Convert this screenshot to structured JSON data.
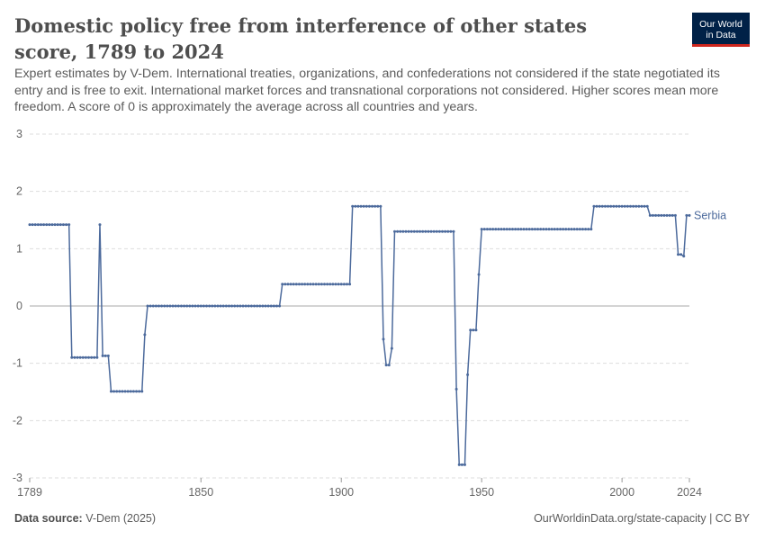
{
  "header": {
    "title": "Domestic policy free from interference of other states score, 1789 to 2024",
    "subtitle": "Expert estimates by V-Dem. International treaties, organizations, and confederations not considered if the state negotiated its entry and is free to exit. International market forces and transnational corporations not considered. Higher scores mean more freedom. A score of 0 is approximately the average across all countries and years.",
    "logo_line1": "Our World",
    "logo_line2": "in Data"
  },
  "footer": {
    "source_label": "Data source:",
    "source_value": "V-Dem (2025)",
    "url": "OurWorldinData.org/state-capacity | CC BY"
  },
  "colors": {
    "series": "#4c6a9c",
    "logo_bg": "#002147",
    "logo_accent": "#ce261e"
  },
  "chart_data": {
    "type": "line",
    "xlabel": "",
    "ylabel": "",
    "xlim": [
      1789,
      2024
    ],
    "ylim": [
      -3,
      3
    ],
    "x_ticks": [
      "1789",
      "1850",
      "1900",
      "1950",
      "2000",
      "2024"
    ],
    "y_ticks": [
      "3",
      "2",
      "1",
      "0",
      "-1",
      "-2",
      "-3"
    ],
    "grid": true,
    "legend": "inline-right",
    "series": [
      {
        "name": "Serbia",
        "segments": [
          [
            1789,
            1.42
          ],
          [
            1803,
            1.42
          ],
          [
            1804,
            -0.9
          ],
          [
            1813,
            -0.9
          ],
          [
            1814,
            1.42
          ],
          [
            1815,
            -0.87
          ],
          [
            1817,
            -0.87
          ],
          [
            1818,
            -1.49
          ],
          [
            1829,
            -1.49
          ],
          [
            1830,
            -0.5
          ],
          [
            1831,
            0.0
          ],
          [
            1878,
            0.0
          ],
          [
            1879,
            0.38
          ],
          [
            1903,
            0.38
          ],
          [
            1904,
            1.74
          ],
          [
            1914,
            1.74
          ],
          [
            1915,
            -0.58
          ],
          [
            1916,
            -1.03
          ],
          [
            1917,
            -1.03
          ],
          [
            1918,
            -0.74
          ],
          [
            1919,
            1.3
          ],
          [
            1940,
            1.3
          ],
          [
            1941,
            -1.45
          ],
          [
            1942,
            -2.77
          ],
          [
            1944,
            -2.77
          ],
          [
            1945,
            -1.2
          ],
          [
            1946,
            -0.42
          ],
          [
            1948,
            -0.42
          ],
          [
            1949,
            0.55
          ],
          [
            1950,
            1.34
          ],
          [
            1989,
            1.34
          ],
          [
            1990,
            1.74
          ],
          [
            2009,
            1.74
          ],
          [
            2010,
            1.58
          ],
          [
            2019,
            1.58
          ],
          [
            2020,
            0.9
          ],
          [
            2021,
            0.9
          ],
          [
            2022,
            0.87
          ],
          [
            2023,
            1.58
          ],
          [
            2024,
            1.58
          ]
        ]
      }
    ]
  }
}
